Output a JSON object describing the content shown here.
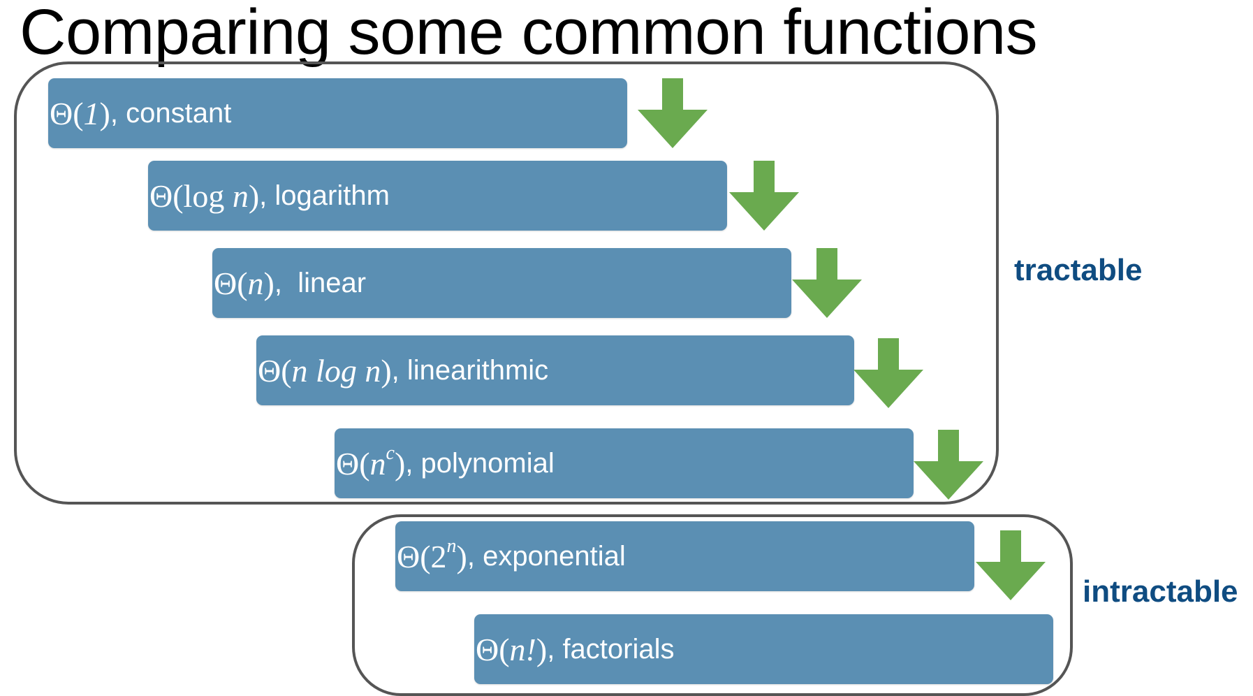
{
  "title": "Comparing some common functions",
  "groups": {
    "tractable": {
      "label": "tractable"
    },
    "intractable": {
      "label": "intractable"
    }
  },
  "functions": [
    {
      "prefix": "Θ(",
      "math_a": "1",
      "sup": "",
      "math_b": "",
      "suffix": ")",
      "sep": ", ",
      "name": "constant"
    },
    {
      "prefix": "Θ(log ",
      "math_a": "n",
      "sup": "",
      "math_b": "",
      "suffix": ")",
      "sep": ", ",
      "name": "logarithm"
    },
    {
      "prefix": "Θ(",
      "math_a": "n",
      "sup": "",
      "math_b": "",
      "suffix": ")",
      "sep": ",  ",
      "name": "linear"
    },
    {
      "prefix": "Θ(",
      "math_a": "n",
      "sup": "",
      "math_b": " log n",
      "suffix": ")",
      "sep": ", ",
      "name": "linearithmic"
    },
    {
      "prefix": "Θ(",
      "math_a": "n",
      "sup": "c",
      "math_b": "",
      "suffix": ")",
      "sep": ", ",
      "name": "polynomial"
    },
    {
      "prefix": "Θ(2",
      "math_a": "",
      "sup": "n",
      "math_b": "",
      "suffix": ")",
      "sep": ", ",
      "name": "exponential"
    },
    {
      "prefix": "Θ(",
      "math_a": "n",
      "sup": "",
      "math_b": "!",
      "suffix": ")",
      "sep": ", ",
      "name": "factorials"
    }
  ],
  "colors": {
    "bar": "#5b8fb3",
    "arrow": "#6aaa4f",
    "label": "#0f4c81",
    "box_border": "#555555"
  },
  "icons": {
    "arrow": "down-arrow-icon"
  }
}
